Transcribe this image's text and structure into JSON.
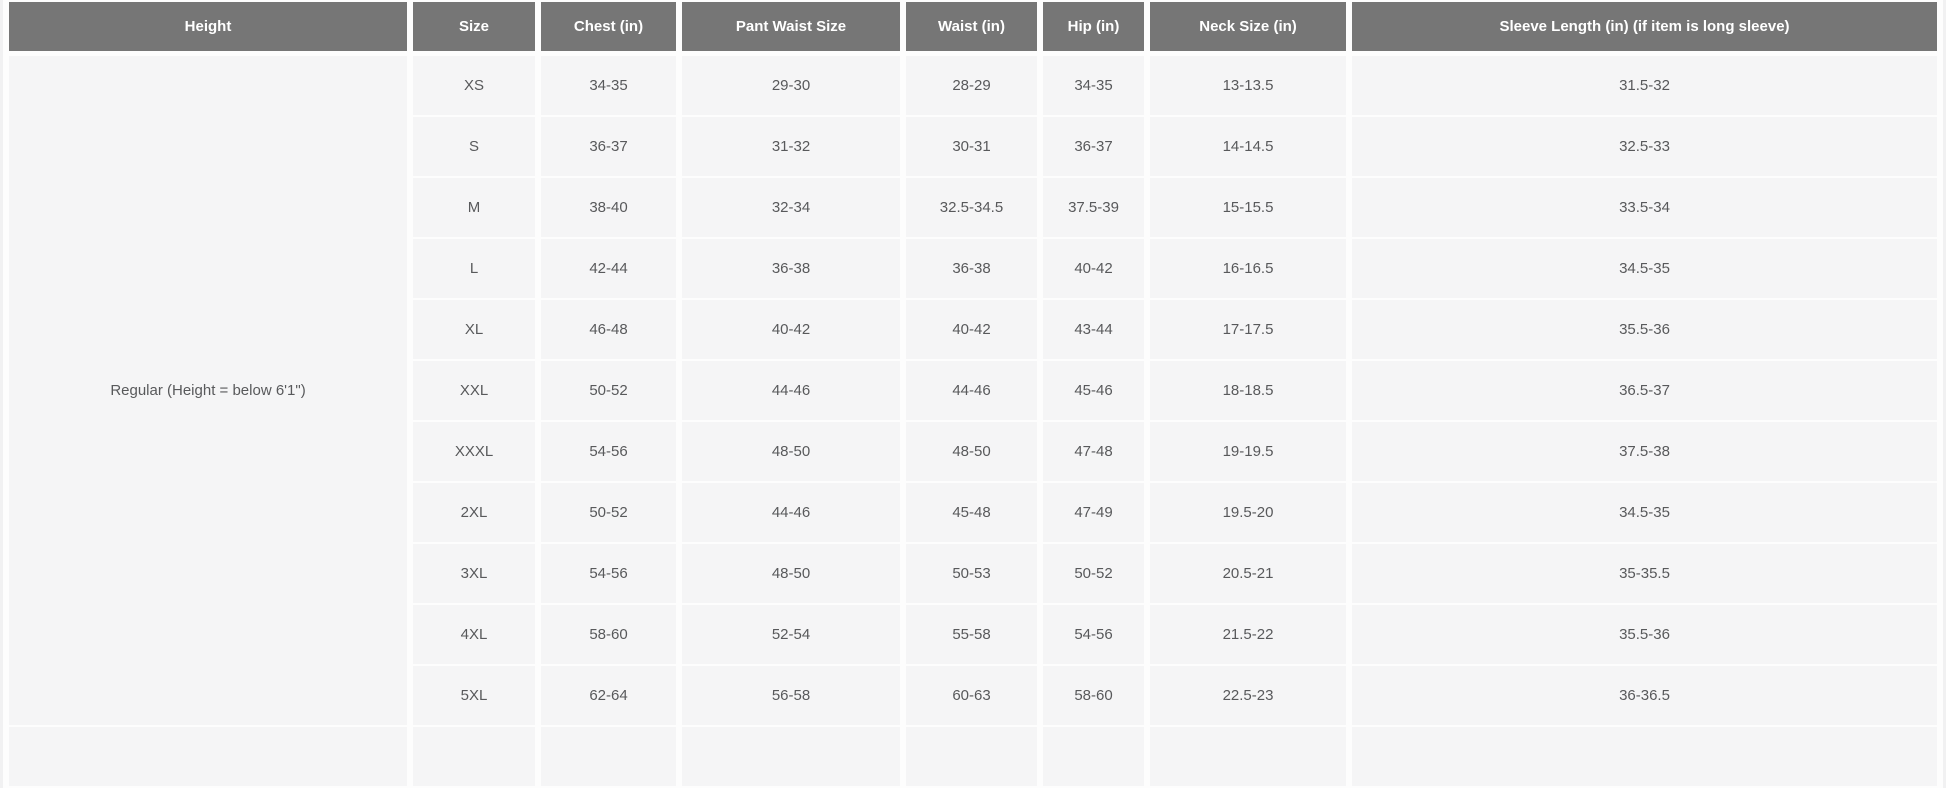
{
  "table": {
    "columns": {
      "height": "Height",
      "size": "Size",
      "chest": "Chest (in)",
      "pant_waist": "Pant Waist Size",
      "waist": "Waist (in)",
      "hip": "Hip (in)",
      "neck": "Neck Size (in)",
      "sleeve": "Sleeve Length (in) (if item is long sleeve)"
    },
    "height_group_label": "Regular (Height = below 6'1\")",
    "rows": [
      {
        "size": "XS",
        "chest": "34-35",
        "pant_waist": "29-30",
        "waist": "28-29",
        "hip": "34-35",
        "neck": "13-13.5",
        "sleeve": "31.5-32"
      },
      {
        "size": "S",
        "chest": "36-37",
        "pant_waist": "31-32",
        "waist": "30-31",
        "hip": "36-37",
        "neck": "14-14.5",
        "sleeve": "32.5-33"
      },
      {
        "size": "M",
        "chest": "38-40",
        "pant_waist": "32-34",
        "waist": "32.5-34.5",
        "hip": "37.5-39",
        "neck": "15-15.5",
        "sleeve": "33.5-34"
      },
      {
        "size": "L",
        "chest": "42-44",
        "pant_waist": "36-38",
        "waist": "36-38",
        "hip": "40-42",
        "neck": "16-16.5",
        "sleeve": "34.5-35"
      },
      {
        "size": "XL",
        "chest": "46-48",
        "pant_waist": "40-42",
        "waist": "40-42",
        "hip": "43-44",
        "neck": "17-17.5",
        "sleeve": "35.5-36"
      },
      {
        "size": "XXL",
        "chest": "50-52",
        "pant_waist": "44-46",
        "waist": "44-46",
        "hip": "45-46",
        "neck": "18-18.5",
        "sleeve": "36.5-37"
      },
      {
        "size": "XXXL",
        "chest": "54-56",
        "pant_waist": "48-50",
        "waist": "48-50",
        "hip": "47-48",
        "neck": "19-19.5",
        "sleeve": "37.5-38"
      },
      {
        "size": "2XL",
        "chest": "50-52",
        "pant_waist": "44-46",
        "waist": "45-48",
        "hip": "47-49",
        "neck": "19.5-20",
        "sleeve": "34.5-35"
      },
      {
        "size": "3XL",
        "chest": "54-56",
        "pant_waist": "48-50",
        "waist": "50-53",
        "hip": "50-52",
        "neck": "20.5-21",
        "sleeve": "35-35.5"
      },
      {
        "size": "4XL",
        "chest": "58-60",
        "pant_waist": "52-54",
        "waist": "55-58",
        "hip": "54-56",
        "neck": "21.5-22",
        "sleeve": "35.5-36"
      },
      {
        "size": "5XL",
        "chest": "62-64",
        "pant_waist": "56-58",
        "waist": "60-63",
        "hip": "58-60",
        "neck": "22.5-23",
        "sleeve": "36-36.5"
      }
    ]
  },
  "colors": {
    "header_bg": "#767676",
    "header_text": "#ffffff",
    "cell_bg": "#f5f5f6",
    "cell_text": "#58595b",
    "gap": "#fdfdfd",
    "page_bg": "#f1f1f2"
  }
}
